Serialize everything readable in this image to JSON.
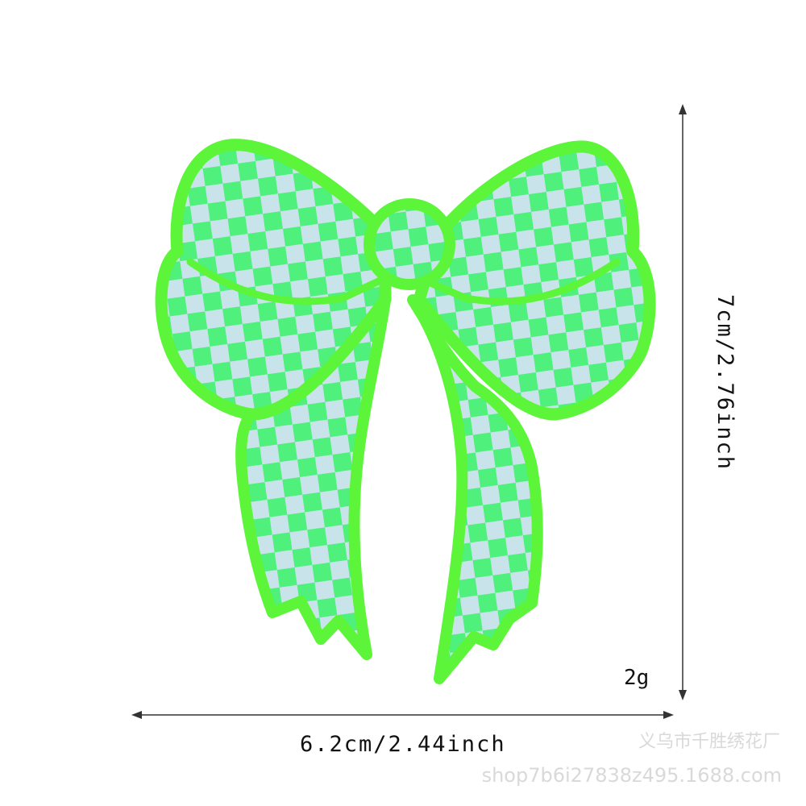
{
  "product": {
    "name": "checkered bow embroidered patch",
    "colors": {
      "border": "#5cf53a",
      "checker_light": "#c9e3ea",
      "checker_green": "#4ff07c",
      "background": "#ffffff"
    }
  },
  "dimensions": {
    "width_label": "6.2cm/2.44inch",
    "height_label": "7cm/2.76inch",
    "weight_label": "2g"
  },
  "watermark": {
    "shop_name": "义乌市千胜绣花厂",
    "url": "shop7b6i27838z495.1688.com"
  }
}
